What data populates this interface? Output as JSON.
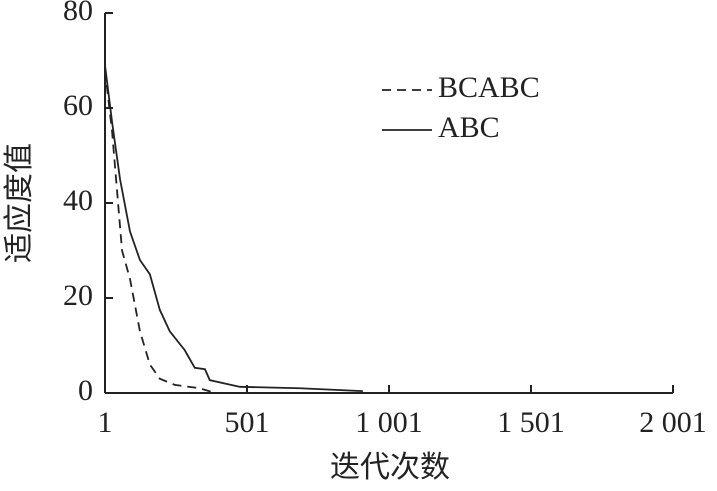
{
  "chart_data": {
    "type": "line",
    "xlabel": "迭代次数",
    "ylabel": "适应度值",
    "xlim": [
      1,
      2001
    ],
    "ylim": [
      0,
      80
    ],
    "xticks": [
      1,
      501,
      {
        "value": 1001,
        "label": "1 001"
      },
      {
        "value": 1501,
        "label": "1 501"
      },
      {
        "value": 2001,
        "label": "2 001"
      }
    ],
    "yticks": [
      0,
      20,
      40,
      60,
      80
    ],
    "legend": "upper right",
    "series": [
      {
        "name": "BCABC",
        "color": "#222222",
        "dash": true,
        "x": [
          1,
          26,
          47,
          61,
          89,
          124,
          159,
          194,
          247,
          335,
          388
        ],
        "values": [
          68,
          55,
          40,
          30,
          24,
          13,
          6,
          3,
          1.7,
          1,
          0
        ]
      },
      {
        "name": "ABC",
        "color": "#222222",
        "dash": false,
        "x": [
          1,
          26,
          54,
          89,
          124,
          159,
          194,
          229,
          282,
          317,
          353,
          370,
          476,
          687,
          909
        ],
        "values": [
          69,
          57,
          45,
          34,
          28,
          25,
          17.5,
          13,
          9,
          5.3,
          5,
          2.7,
          1.3,
          1,
          0.4
        ]
      }
    ]
  }
}
